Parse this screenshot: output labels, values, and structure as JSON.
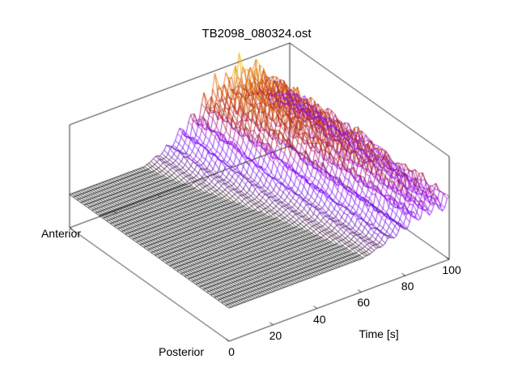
{
  "chart_data": {
    "type": "surface3d",
    "title": "TB2098_080324.ost",
    "background_color": "#ffffff",
    "line_style": "wireframe mesh, height-colored, no hidden-line removal",
    "time_axis": {
      "label": "Time [s]",
      "ticks": [
        0,
        20,
        40,
        60,
        80,
        100
      ],
      "range": [
        0,
        100
      ]
    },
    "depth_axis": {
      "front_label": "Posterior",
      "back_label": "Anterior",
      "tick_labels": [
        "Posterior",
        "Anterior"
      ]
    },
    "z_axis": {
      "tick_labels_visible": false,
      "base_plane_offset_ratio": 0.43
    },
    "palette": {
      "name": "gnuplot rgbformulae 7,5,15 (black-violet-red-orange-yellow)",
      "stops": {
        "0.00": "#000000",
        "0.15": "#650dcc",
        "0.30": "#8b07f2",
        "0.40": "#a11096",
        "0.50": "#b42000",
        "0.65": "#ce4600",
        "0.80": "#e48300",
        "0.92": "#f2ba00"
      }
    },
    "mesh": {
      "rows": 44,
      "cols": 101,
      "pulse_period_s": 5.5,
      "pulse_depth": 0.48,
      "pulse_sharpness": 1.5,
      "noise_amp": 0.12,
      "row_phase_shift": 0.05
    },
    "fall_width_s": 16,
    "envelope_stations": [
      {
        "depth": 0.0,
        "onset_s": 60,
        "peak_s": 93,
        "amp": 0.46
      },
      {
        "depth": 0.09,
        "onset_s": 59,
        "peak_s": 92,
        "amp": 0.5
      },
      {
        "depth": 0.18,
        "onset_s": 57,
        "peak_s": 90,
        "amp": 0.54
      },
      {
        "depth": 0.27,
        "onset_s": 55,
        "peak_s": 89,
        "amp": 0.58
      },
      {
        "depth": 0.36,
        "onset_s": 52,
        "peak_s": 87,
        "amp": 0.62
      },
      {
        "depth": 0.45,
        "onset_s": 50,
        "peak_s": 85,
        "amp": 0.66
      },
      {
        "depth": 0.55,
        "onset_s": 47,
        "peak_s": 83,
        "amp": 0.72
      },
      {
        "depth": 0.64,
        "onset_s": 44,
        "peak_s": 81,
        "amp": 0.78
      },
      {
        "depth": 0.73,
        "onset_s": 41,
        "peak_s": 80,
        "amp": 0.84
      },
      {
        "depth": 0.82,
        "onset_s": 38,
        "peak_s": 78,
        "amp": 0.88
      },
      {
        "depth": 0.91,
        "onset_s": 35,
        "peak_s": 77,
        "amp": 0.92
      },
      {
        "depth": 1.0,
        "onset_s": 33,
        "peak_s": 76,
        "amp": 0.95
      }
    ]
  }
}
